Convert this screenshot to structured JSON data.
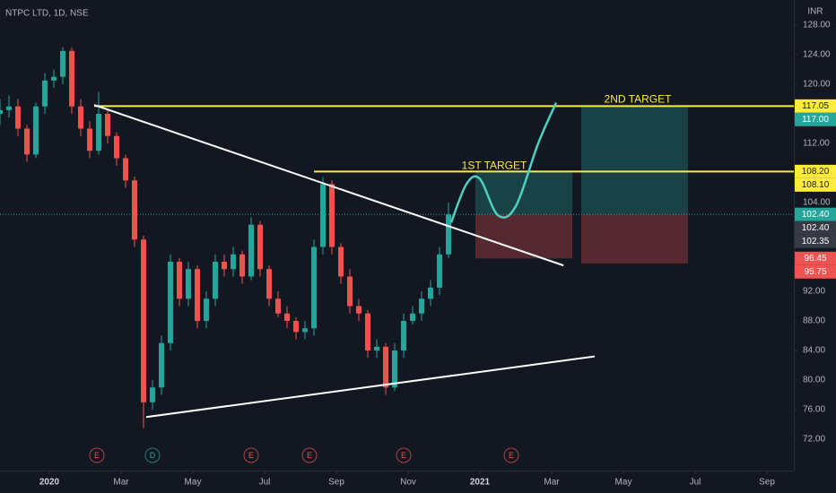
{
  "chart_data": {
    "type": "candlestick",
    "title": "NTPC LTD, 1D, NSE",
    "currency": "INR",
    "up_color": "#26a69a",
    "down_color": "#ef5350",
    "grid": false,
    "x": [
      -1.375,
      -1.125,
      -0.875,
      -0.625,
      -0.375,
      -0.125,
      0.125,
      0.375,
      0.625,
      0.875,
      1.125,
      1.375,
      1.625,
      1.875,
      2.125,
      2.375,
      2.625,
      2.875,
      3.125,
      3.375,
      3.625,
      3.875,
      4.125,
      4.375,
      4.625,
      4.875,
      5.125,
      5.375,
      5.625,
      5.875,
      6.125,
      6.375,
      6.625,
      6.875,
      7.125,
      7.375,
      7.625,
      7.875,
      8.125,
      8.375,
      8.625,
      8.875,
      9.125,
      9.375,
      9.625,
      9.875,
      10.125,
      10.375,
      10.625,
      10.875,
      11.125
    ],
    "open": [
      116,
      116.5,
      117,
      114,
      110.5,
      117,
      120.5,
      121,
      124.5,
      117,
      114,
      111,
      116,
      113,
      110,
      107,
      99,
      77,
      79,
      85,
      96,
      91,
      95,
      88,
      91,
      96,
      95,
      97,
      94,
      101,
      95,
      91,
      89,
      88,
      86.5,
      87,
      98,
      106.5,
      98,
      94,
      90,
      89,
      84,
      84.5,
      79,
      84,
      88,
      89,
      91,
      92.5,
      97
    ],
    "high": [
      118,
      118.5,
      118,
      114.5,
      117.5,
      121.5,
      122,
      125,
      125,
      118,
      115,
      119,
      116.5,
      113.5,
      110.5,
      107.5,
      99.5,
      80,
      86,
      97,
      96.5,
      96,
      95.5,
      92,
      97,
      97,
      98,
      97.5,
      102,
      101.5,
      95.5,
      92,
      90,
      88.5,
      88,
      99,
      107.5,
      107,
      98.5,
      95,
      91,
      89.5,
      85.5,
      85,
      85,
      89,
      90,
      92,
      93.5,
      98,
      104
    ],
    "low": [
      114.5,
      115.5,
      113,
      109.5,
      110,
      116,
      119.5,
      120,
      116,
      113,
      110,
      110.5,
      112,
      109,
      106,
      98,
      73.5,
      76,
      78,
      84,
      90,
      90,
      87,
      87,
      90,
      94,
      94,
      93,
      93.5,
      94,
      90,
      88.5,
      87,
      85.5,
      85.5,
      86,
      97,
      97,
      93,
      89,
      88,
      83,
      83,
      78,
      78.5,
      83,
      87.5,
      88,
      90,
      91.5,
      96.5
    ],
    "close": [
      116.5,
      117,
      114,
      110.5,
      117,
      120.5,
      121,
      124.5,
      117,
      114,
      111,
      116,
      113,
      110,
      107,
      99,
      77,
      79,
      85,
      96,
      91,
      95,
      88,
      91,
      96,
      95,
      97,
      94,
      101,
      95,
      91,
      89,
      88,
      86.5,
      87,
      98,
      106.5,
      98,
      94,
      90,
      89,
      84,
      84.5,
      79,
      84,
      88,
      89,
      91,
      92.5,
      97,
      102.4
    ],
    "xlim": [
      -1.375,
      20.75
    ],
    "xticks": [
      {
        "value": 0,
        "label": "2020"
      },
      {
        "value": 2,
        "label": "Mar"
      },
      {
        "value": 4,
        "label": "May"
      },
      {
        "value": 6,
        "label": "Jul"
      },
      {
        "value": 8,
        "label": "Sep"
      },
      {
        "value": 10,
        "label": "Nov"
      },
      {
        "value": 12,
        "label": "2021"
      },
      {
        "value": 14,
        "label": "Mar"
      },
      {
        "value": 16,
        "label": "May"
      },
      {
        "value": 18,
        "label": "Jul"
      },
      {
        "value": 20,
        "label": "Sep"
      }
    ],
    "ylim": [
      67.76,
      131.39
    ],
    "yticks": [
      {
        "value": 128,
        "label": "128.00"
      },
      {
        "value": 124,
        "label": "124.00"
      },
      {
        "value": 120,
        "label": "120.00"
      },
      {
        "value": 112,
        "label": "112.00"
      },
      {
        "value": 104,
        "label": "104.00"
      },
      {
        "value": 92,
        "label": "92.00"
      },
      {
        "value": 88,
        "label": "88.00"
      },
      {
        "value": 84,
        "label": "84.00"
      },
      {
        "value": 80,
        "label": "80.00"
      },
      {
        "value": 76,
        "label": "76.00"
      },
      {
        "value": 72,
        "label": "72.00"
      }
    ],
    "current_price": {
      "value": 102.4,
      "color": "#26a69a"
    },
    "levels": [
      {
        "value": 117.05,
        "from": 1.25,
        "color": "#ffeb3b"
      },
      {
        "value": 108.2,
        "from": 7.375,
        "color": "#ffeb3b"
      }
    ],
    "trendlines": [
      {
        "x": [
          1.25,
          14.33
        ],
        "y": [
          117.2,
          95.5
        ],
        "color": "#ffffff"
      },
      {
        "x": [
          2.7,
          15.2
        ],
        "y": [
          75,
          83.2
        ],
        "color": "#ffffff"
      }
    ],
    "projection": {
      "x": [
        11.2,
        11.625,
        12.0,
        12.5,
        13.0,
        13.625,
        14.125
      ],
      "y": [
        101.3,
        106.5,
        107.2,
        102.3,
        103.5,
        112,
        117.5
      ],
      "color": "#4dd0c0"
    },
    "positions": [
      {
        "x": [
          11.875,
          14.575
        ],
        "entry": 102.4,
        "target": 108.1,
        "stop": 96.45
      },
      {
        "x": [
          14.825,
          17.8
        ],
        "entry": 102.4,
        "target": 117,
        "stop": 95.75
      }
    ],
    "annotations": [
      {
        "text": "1ST TARGET",
        "x": 12.4,
        "y": 108.9,
        "color": "#ffeb3b"
      },
      {
        "text": "2ND TARGET",
        "x": 16.4,
        "y": 117.9,
        "color": "#ffeb3b"
      }
    ],
    "events": [
      {
        "x": 1.325,
        "label": "E"
      },
      {
        "x": 2.875,
        "label": "D"
      },
      {
        "x": 5.625,
        "label": "E"
      },
      {
        "x": 7.25,
        "label": "E"
      },
      {
        "x": 9.875,
        "label": "E"
      },
      {
        "x": 12.875,
        "label": "E"
      }
    ],
    "price_labels": [
      {
        "value": 117.05,
        "color": "#ffeb3b",
        "text_color": "#131722"
      },
      {
        "value": 117,
        "label": "117.00",
        "color": "#26a69a",
        "text_color": "#ffffff"
      },
      {
        "value": 108.2,
        "label": "108.20",
        "color": "#ffeb3b",
        "text_color": "#131722"
      },
      {
        "value": 108.1,
        "label": "108.10",
        "color": "#ffeb3b",
        "text_color": "#131722"
      },
      {
        "value": 102.4,
        "label": "102.40",
        "color": "#26a69a",
        "text_color": "#ffffff"
      },
      {
        "value": 102.4,
        "label": "102.40",
        "color": "#363a45",
        "text_color": "#ffffff"
      },
      {
        "value": 102.35,
        "color": "#363a45",
        "text_color": "#ffffff"
      },
      {
        "value": 96.45,
        "color": "#ef5350",
        "text_color": "#ffffff"
      },
      {
        "value": 95.75,
        "color": "#ef5350",
        "text_color": "#ffffff"
      }
    ]
  }
}
